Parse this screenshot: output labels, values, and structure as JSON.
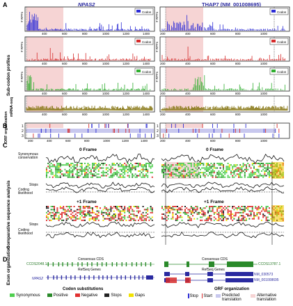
{
  "panels": {
    "A": "A",
    "B": "B",
    "C": "C",
    "D": "D"
  },
  "genes": {
    "left": "NPAS2",
    "right": "THAP7 (NM_001008695)"
  },
  "section_labels": {
    "subcodon": "Sub-codon profiles",
    "mrnaseq": "mRNA-seq",
    "orf": "ORF organization",
    "comparative": "Comparative sequence analysis",
    "exon": "Exon organization"
  },
  "profile_rows": {
    "left_ylabels": [
      "# RPFs",
      "# RPFs",
      "# RPFs"
    ],
    "right_ylabels": [
      "# RPFs",
      "# RPFs",
      "# RPFs"
    ],
    "legend_codon": "Codon",
    "left_xticks": [
      "400",
      "600",
      "800",
      "1000",
      "1200",
      "1400"
    ],
    "right_xticks": [
      "200",
      "400",
      "600",
      "800",
      "1000"
    ],
    "mrna_left_xticks": [
      "400",
      "600",
      "800",
      "1000",
      "1200",
      "1400"
    ],
    "mrna_right_xticks": [
      "200",
      "400",
      "600",
      "800",
      "1000"
    ]
  },
  "orf_rows": {
    "frames": [
      "1",
      "2",
      "3"
    ],
    "left_xticks": [
      "200",
      "400",
      "600",
      "800",
      "1000",
      "1200",
      "1400"
    ],
    "right_xticks": [
      "200",
      "400",
      "600",
      "800",
      "1000"
    ]
  },
  "comparative": {
    "frame0": "0 Frame",
    "frame1": "+1 Frame",
    "synonymous": "Synonymous conservation",
    "stops": "Stops",
    "coding": "Coding likelihood"
  },
  "exons": {
    "left_consensus": "Consensus CDS",
    "left_ccds": "CCDS2048.1",
    "left_refseq": "RefSeq Genes",
    "left_gene": "NPAS2",
    "right_consensus": "Consensus CDS",
    "right_ccds": "CCDS13787.1",
    "right_refseq": "RefSeq Genes",
    "right_nm1": "NM_030573",
    "right_nm2": "NM_001008695"
  },
  "legend": {
    "codon_title": "Codon substitutions",
    "synonymous": "Synonymous",
    "positive": "Positive",
    "negative": "Negative",
    "stops": "Stops",
    "gaps": "Gaps",
    "orf_title": "ORF organization",
    "stop": "Stop",
    "start": "Start",
    "predicted": "Predicted translation",
    "alternative": "Alternative translation"
  },
  "colors": {
    "blue": "#2b2bd6",
    "red": "#d62b2b",
    "green": "#2fae2f",
    "olive": "#8a7a1a",
    "pink": "#f6d4d4",
    "synonymous": "#4fcf4f",
    "positive": "#2a8a2a",
    "negative": "#e03030",
    "stop": "#222222",
    "gap": "#f2e200"
  }
}
